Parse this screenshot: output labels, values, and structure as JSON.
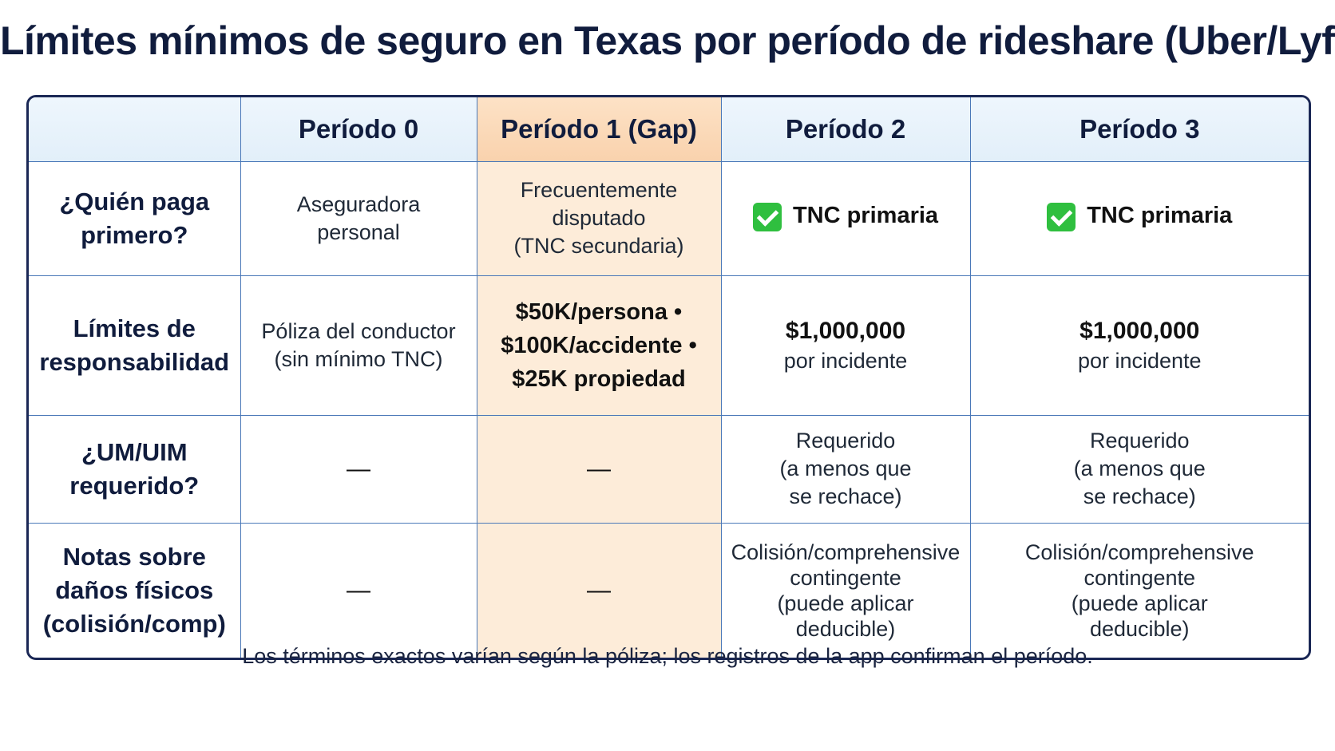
{
  "title": "Límites mínimos de seguro en Texas por período de rideshare (Uber/Lyft)",
  "columns": [
    "",
    "Período 0",
    "Período 1 (Gap)",
    "Período 2",
    "Período 3"
  ],
  "rows": [
    {
      "label": [
        "¿Quién paga",
        "primero?"
      ],
      "p0": [
        "Aseguradora",
        "personal"
      ],
      "p1": [
        "Frecuentemente",
        "disputado",
        "(TNC secundaria)"
      ],
      "p2": "TNC primaria",
      "p3": "TNC primaria"
    },
    {
      "label": [
        "Límites de",
        "responsabilidad"
      ],
      "p0": [
        "Póliza del conductor",
        "(sin mínimo TNC)"
      ],
      "p1": [
        "$50K/persona •",
        "$100K/accidente •",
        "$25K propiedad"
      ],
      "p2": {
        "amount": "$1,000,000",
        "sub": "por incidente"
      },
      "p3": {
        "amount": "$1,000,000",
        "sub": "por incidente"
      }
    },
    {
      "label": [
        "¿UM/UIM",
        "requerido?"
      ],
      "p0": "—",
      "p1": "—",
      "p2": [
        "Requerido",
        "(a menos que",
        "se rechace)"
      ],
      "p3": [
        "Requerido",
        "(a menos que",
        "se rechace)"
      ]
    },
    {
      "label": [
        "Notas sobre",
        "daños físicos",
        "(colisión/comp)"
      ],
      "p0": "—",
      "p1": "—",
      "p2": [
        "Colisión/comprehensive",
        "contingente",
        "(puede aplicar",
        "deducible)"
      ],
      "p3": [
        "Colisión/comprehensive",
        "contingente",
        "(puede aplicar",
        "deducible)"
      ]
    }
  ],
  "footer": "Los términos exactos varían según la póliza; los registros de la app confirman el período.",
  "colors": {
    "title": "#101c3d",
    "border": "#1a2755",
    "grid": "#4a78b8",
    "header_bg": "#e8f3fc",
    "gap_header_bg": "#fbd9b9",
    "gap_bg": "#fdecd9",
    "check": "#2fbf3f"
  },
  "icons": {
    "check": "check-mark-icon"
  }
}
